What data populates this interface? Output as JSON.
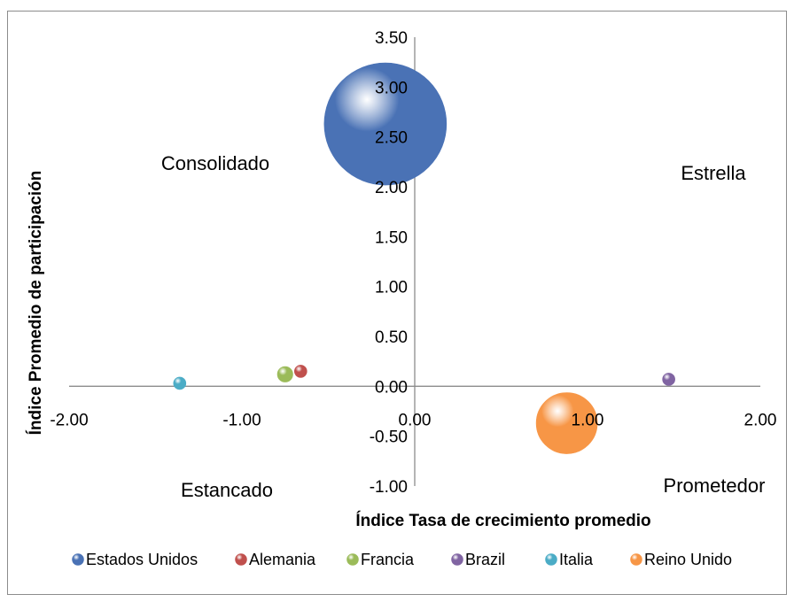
{
  "chart_data": {
    "type": "bubble",
    "title": "",
    "xlabel": "Índice Tasa de crecimiento promedio",
    "ylabel": "Índice Promedio de participación",
    "xlim": [
      -2.0,
      2.0
    ],
    "ylim": [
      -1.0,
      3.5
    ],
    "x_ticks": [
      -2.0,
      -1.0,
      0.0,
      1.0,
      2.0
    ],
    "x_tick_labels": [
      "-2.00",
      "-1.00",
      "0.00",
      "1.00",
      "2.00"
    ],
    "y_ticks": [
      -1.0,
      -0.5,
      0.0,
      0.5,
      1.0,
      1.5,
      2.0,
      2.5,
      3.0,
      3.5
    ],
    "y_tick_labels": [
      "-1.00",
      "-0.50",
      "0.00",
      "0.50",
      "1.00",
      "1.50",
      "2.00",
      "2.50",
      "3.00",
      "3.50"
    ],
    "grid": false,
    "legend_position": "bottom",
    "quadrant_labels": [
      {
        "text": "Consolidado",
        "quadrant": "top-left"
      },
      {
        "text": "Estrella",
        "quadrant": "top-right"
      },
      {
        "text": "Estancado",
        "quadrant": "bottom-left"
      },
      {
        "text": "Prometedor",
        "quadrant": "bottom-right"
      }
    ],
    "series": [
      {
        "name": "Estados Unidos",
        "x": -0.17,
        "y": 2.63,
        "size": 100,
        "color": "#4a72b5"
      },
      {
        "name": "Alemania",
        "x": -0.66,
        "y": 0.15,
        "size": 1,
        "color": "#c0504d"
      },
      {
        "name": "Francia",
        "x": -0.75,
        "y": 0.12,
        "size": 1.6,
        "color": "#9bbb59"
      },
      {
        "name": "Brazil",
        "x": 1.47,
        "y": 0.07,
        "size": 1,
        "color": "#8064a2"
      },
      {
        "name": "Italia",
        "x": -1.36,
        "y": 0.03,
        "size": 1,
        "color": "#4bacc6"
      },
      {
        "name": "Reino Unido",
        "x": 0.88,
        "y": -0.37,
        "size": 25,
        "color": "#f79646"
      }
    ]
  }
}
